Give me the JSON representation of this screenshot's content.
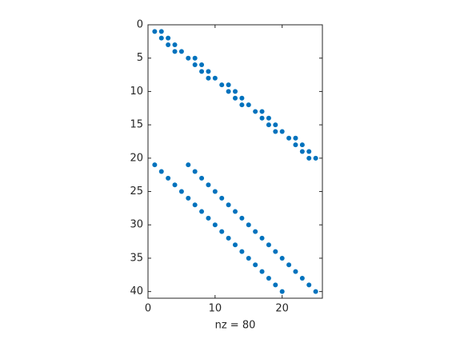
{
  "chart_data": {
    "type": "spy",
    "xlabel": "nz = 80",
    "color": "#0072bd",
    "x": [
      1,
      2,
      2,
      3,
      3,
      4,
      4,
      5,
      6,
      7,
      7,
      8,
      8,
      9,
      9,
      10,
      11,
      12,
      12,
      13,
      13,
      14,
      14,
      15,
      16,
      17,
      17,
      18,
      18,
      19,
      19,
      20,
      21,
      22,
      22,
      23,
      23,
      24,
      24,
      25,
      1,
      2,
      3,
      4,
      5,
      6,
      7,
      8,
      9,
      10,
      11,
      12,
      13,
      14,
      15,
      16,
      17,
      18,
      19,
      20,
      6,
      7,
      8,
      9,
      10,
      11,
      12,
      13,
      14,
      15,
      16,
      17,
      18,
      19,
      20,
      21,
      22,
      23,
      24,
      25
    ],
    "y": [
      1,
      1,
      2,
      2,
      3,
      3,
      4,
      4,
      5,
      5,
      6,
      6,
      7,
      7,
      8,
      8,
      9,
      9,
      10,
      10,
      11,
      11,
      12,
      12,
      13,
      13,
      14,
      14,
      15,
      15,
      16,
      16,
      17,
      17,
      18,
      18,
      19,
      19,
      20,
      20,
      21,
      22,
      23,
      24,
      25,
      26,
      27,
      28,
      29,
      30,
      31,
      32,
      33,
      34,
      35,
      36,
      37,
      38,
      39,
      40,
      21,
      22,
      23,
      24,
      25,
      26,
      27,
      28,
      29,
      30,
      31,
      32,
      33,
      34,
      35,
      36,
      37,
      38,
      39,
      40
    ],
    "xlim": [
      0,
      26
    ],
    "ylim": [
      0,
      41
    ],
    "y_reversed": true,
    "xticks": [
      0,
      10,
      20
    ],
    "yticks": [
      0,
      5,
      10,
      15,
      20,
      25,
      30,
      35,
      40
    ]
  }
}
